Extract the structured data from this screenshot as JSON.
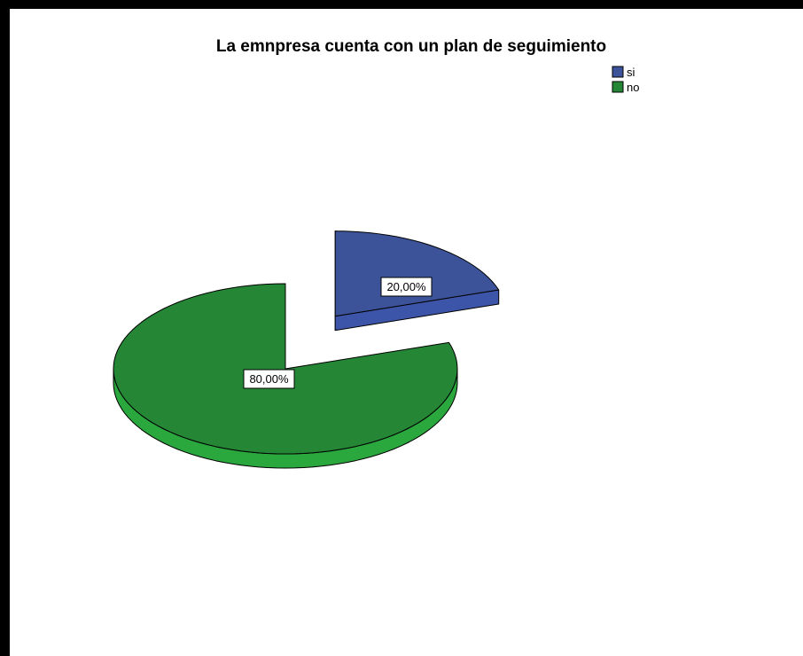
{
  "chart_data": {
    "type": "pie",
    "title": "La emnpresa cuenta con un plan de seguimiento",
    "categories": [
      "si",
      "no"
    ],
    "values": [
      20,
      80
    ],
    "data_labels": [
      "20,00%",
      "80,00%"
    ],
    "colors": [
      "#3c539a",
      "#258636"
    ],
    "side_colors": [
      "#3d55a8",
      "#2aa83d"
    ],
    "exploded": [
      "si"
    ],
    "style": "3d",
    "legend_position": "top-right"
  }
}
